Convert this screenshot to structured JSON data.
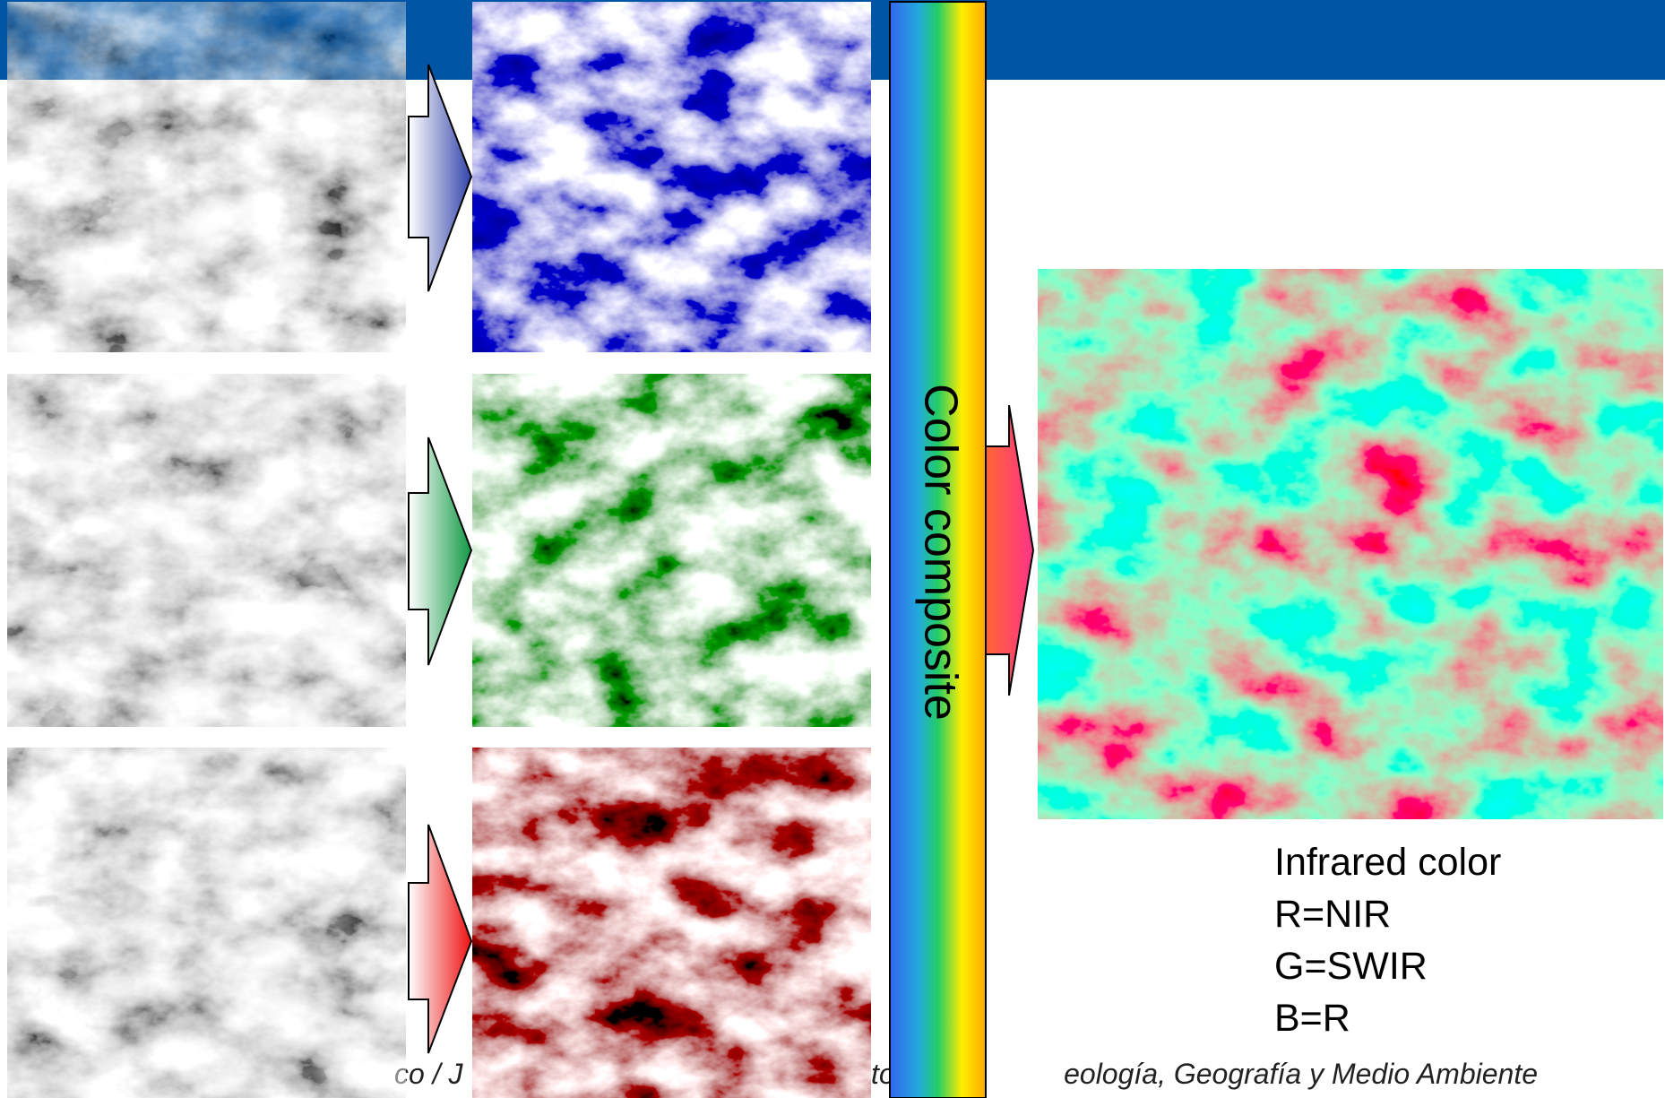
{
  "slide": {
    "bar_label": "Color composite",
    "caption": [
      "Infrared color",
      "R=NIR",
      "G=SWIR",
      "B=R"
    ],
    "footer": [
      "co / J",
      "to",
      "eología, Geografía y Medio Ambiente"
    ]
  }
}
